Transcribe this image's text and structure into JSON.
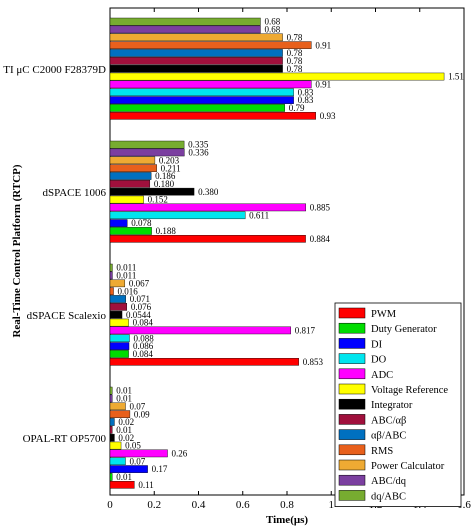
{
  "chart_data": {
    "type": "bar",
    "orientation": "horizontal",
    "xlabel": "Time(μs)",
    "ylabel": "Real-Time Control Platform (RTCP)",
    "xlim": [
      0,
      1.6
    ],
    "xticks": [
      "0",
      "0.2",
      "0.4",
      "0.6",
      "0.8",
      "1",
      "1.2",
      "1.4",
      "1.6"
    ],
    "xtick_values": [
      0,
      0.2,
      0.4,
      0.6,
      0.8,
      1.0,
      1.2,
      1.4,
      1.6
    ],
    "grid": false,
    "legend_position": "bottom-right",
    "series_names": [
      "PWM",
      "Duty Generator",
      "DI",
      "DO",
      "ADC",
      "Voltage Reference",
      "Integrator",
      "ABC/αβ",
      "αβ/ABC",
      "RMS",
      "Power Calculator",
      "ABC/dq",
      "dq/ABC"
    ],
    "series_colors": [
      "#ff0000",
      "#00dd00",
      "#0000ff",
      "#00e5ee",
      "#ff00ff",
      "#ffff00",
      "#000000",
      "#a0103c",
      "#0070c0",
      "#e8601c",
      "#eeaa33",
      "#7b3fa0",
      "#77ac30"
    ],
    "groups": [
      {
        "name": "TI μC C2000 F28379D",
        "values": [
          0.93,
          0.79,
          0.83,
          0.83,
          0.91,
          1.51,
          0.78,
          0.78,
          0.78,
          0.91,
          0.78,
          0.68,
          0.68
        ],
        "labels": [
          "0.93",
          "0.79",
          "0.83",
          "0.83",
          "0.91",
          "1.51",
          "0.78",
          "0.78",
          "0.78",
          "0.91",
          "0.78",
          "0.68",
          "0.68"
        ]
      },
      {
        "name": "dSPACE 1006",
        "values": [
          0.884,
          0.188,
          0.078,
          0.611,
          0.885,
          0.152,
          0.38,
          0.18,
          0.186,
          0.211,
          0.203,
          0.336,
          0.335
        ],
        "labels": [
          "0.884",
          "0.188",
          "0.078",
          "0.611",
          "0.885",
          "0.152",
          "0.380",
          "0.180",
          "0.186",
          "0.211",
          "0.203",
          "0.336",
          "0.335"
        ]
      },
      {
        "name": "dSPACE Scalexio",
        "values": [
          0.853,
          0.084,
          0.086,
          0.088,
          0.817,
          0.084,
          0.0544,
          0.076,
          0.071,
          0.016,
          0.067,
          0.011,
          0.011
        ],
        "labels": [
          "0.853",
          "0.084",
          "0.086",
          "0.088",
          "0.817",
          "0.084",
          "0.0544",
          "0.076",
          "0.071",
          "0.016",
          "0.067",
          "0.011",
          "0.011"
        ]
      },
      {
        "name": "OPAL-RT OP5700",
        "values": [
          0.11,
          0.01,
          0.17,
          0.07,
          0.26,
          0.05,
          0.02,
          0.01,
          0.02,
          0.09,
          0.07,
          0.01,
          0.01
        ],
        "labels": [
          "0.11",
          "0.01",
          "0.17",
          "0.07",
          "0.26",
          "0.05",
          "0.02",
          "0.01",
          "0.02",
          "0.09",
          "0.07",
          "0.01",
          "0.01"
        ]
      }
    ]
  }
}
